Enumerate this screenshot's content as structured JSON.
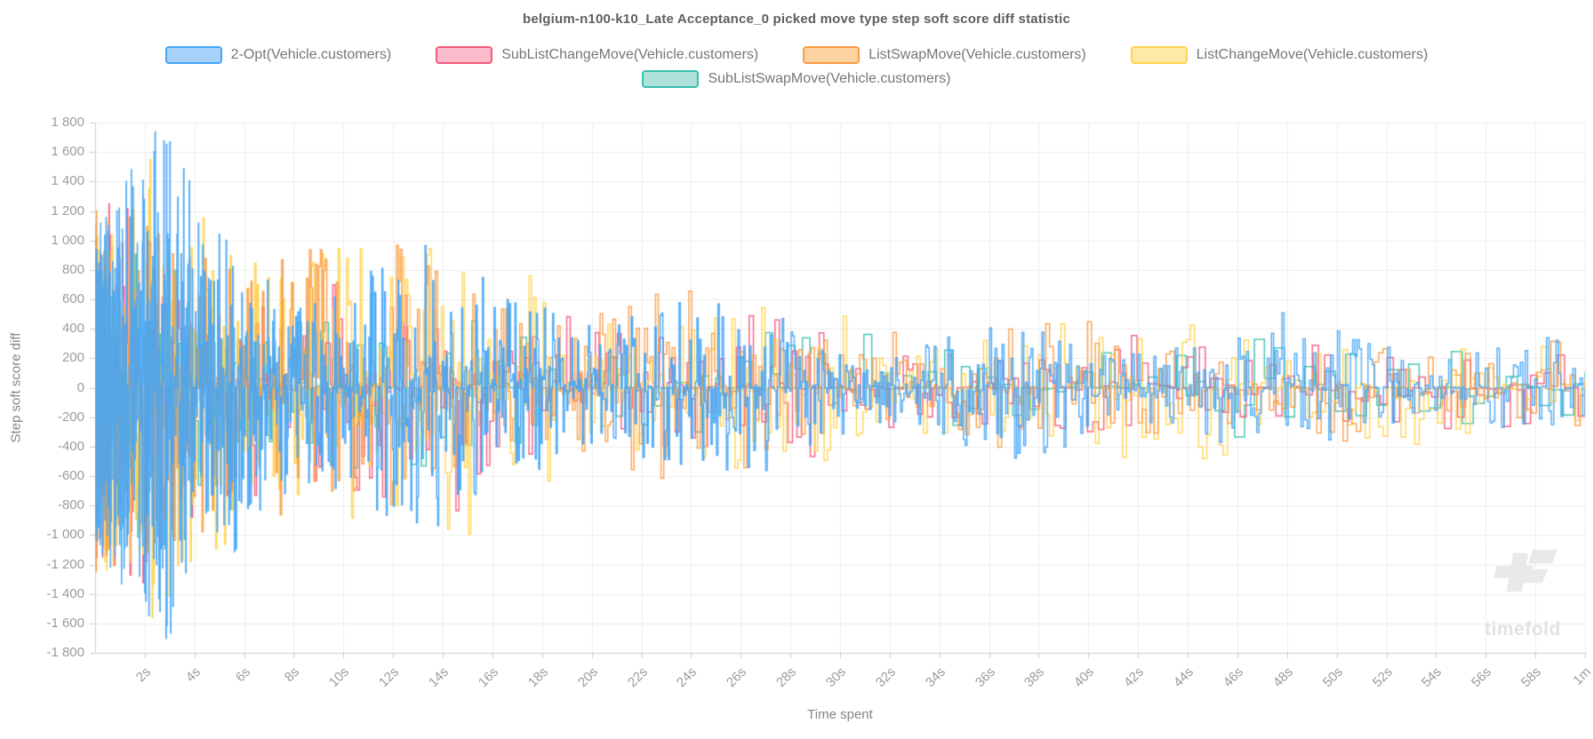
{
  "watermark": {
    "text": "timefold"
  },
  "chart_data": {
    "type": "line",
    "variant": "step-noise",
    "title": "belgium-n100-k10_Late Acceptance_0 picked move type step soft score diff statistic",
    "xlabel": "Time spent",
    "ylabel": "Step soft score diff",
    "x_unit": "seconds",
    "xlim": [
      0,
      60
    ],
    "ylim": [
      -1800,
      1800
    ],
    "grid": true,
    "legend_position": "top",
    "colors": {
      "grid": "#ececec",
      "axis": "#cccccc",
      "tick_text": "#9b9b9b",
      "title_text": "#5f5f5f"
    },
    "y_ticks": [
      {
        "v": 1800,
        "label": "1 800"
      },
      {
        "v": 1600,
        "label": "1 600"
      },
      {
        "v": 1400,
        "label": "1 400"
      },
      {
        "v": 1200,
        "label": "1 200"
      },
      {
        "v": 1000,
        "label": "1 000"
      },
      {
        "v": 800,
        "label": "800"
      },
      {
        "v": 600,
        "label": "600"
      },
      {
        "v": 400,
        "label": "400"
      },
      {
        "v": 200,
        "label": "200"
      },
      {
        "v": 0,
        "label": "0"
      },
      {
        "v": -200,
        "label": "-200"
      },
      {
        "v": -400,
        "label": "-400"
      },
      {
        "v": -600,
        "label": "-600"
      },
      {
        "v": -800,
        "label": "-800"
      },
      {
        "v": -1000,
        "label": "-1 000"
      },
      {
        "v": -1200,
        "label": "-1 200"
      },
      {
        "v": -1400,
        "label": "-1 400"
      },
      {
        "v": -1600,
        "label": "-1 600"
      },
      {
        "v": -1800,
        "label": "-1 800"
      }
    ],
    "x_ticks": [
      {
        "v": 2,
        "label": "2s"
      },
      {
        "v": 4,
        "label": "4s"
      },
      {
        "v": 6,
        "label": "6s"
      },
      {
        "v": 8,
        "label": "8s"
      },
      {
        "v": 10,
        "label": "10s"
      },
      {
        "v": 12,
        "label": "12s"
      },
      {
        "v": 14,
        "label": "14s"
      },
      {
        "v": 16,
        "label": "16s"
      },
      {
        "v": 18,
        "label": "18s"
      },
      {
        "v": 20,
        "label": "20s"
      },
      {
        "v": 22,
        "label": "22s"
      },
      {
        "v": 24,
        "label": "24s"
      },
      {
        "v": 26,
        "label": "26s"
      },
      {
        "v": 28,
        "label": "28s"
      },
      {
        "v": 30,
        "label": "30s"
      },
      {
        "v": 32,
        "label": "32s"
      },
      {
        "v": 34,
        "label": "34s"
      },
      {
        "v": 36,
        "label": "36s"
      },
      {
        "v": 38,
        "label": "38s"
      },
      {
        "v": 40,
        "label": "40s"
      },
      {
        "v": 42,
        "label": "42s"
      },
      {
        "v": 44,
        "label": "44s"
      },
      {
        "v": 46,
        "label": "46s"
      },
      {
        "v": 48,
        "label": "48s"
      },
      {
        "v": 50,
        "label": "50s"
      },
      {
        "v": 52,
        "label": "52s"
      },
      {
        "v": 54,
        "label": "54s"
      },
      {
        "v": 56,
        "label": "56s"
      },
      {
        "v": 58,
        "label": "58s"
      },
      {
        "v": 60,
        "label": "1m"
      }
    ],
    "z_order": [
      4,
      1,
      3,
      2,
      0
    ],
    "series": [
      {
        "name": "2-Opt(Vehicle.customers)",
        "color": "#45a5f5",
        "fill": "#a9d2fa",
        "seed": 7,
        "points": 1600,
        "gamma": 2.6,
        "mag_pow": 1.8,
        "burst": [
          0.55,
          0.0,
          0.78,
          0.22
        ],
        "envelope": [
          [
            0,
            1350
          ],
          [
            1.5,
            1600
          ],
          [
            2.7,
            1800
          ],
          [
            4,
            1500
          ],
          [
            6,
            1400
          ],
          [
            8,
            1250
          ],
          [
            10,
            1150
          ],
          [
            13,
            1050
          ],
          [
            16,
            900
          ],
          [
            19,
            800
          ],
          [
            22,
            750
          ],
          [
            25,
            650
          ],
          [
            28,
            600
          ],
          [
            32,
            520
          ],
          [
            36,
            500
          ],
          [
            40,
            460
          ],
          [
            44,
            500
          ],
          [
            47,
            560
          ],
          [
            50,
            420
          ],
          [
            54,
            400
          ],
          [
            60,
            380
          ]
        ]
      },
      {
        "name": "SubListChangeMove(Vehicle.customers)",
        "color": "#f4597b",
        "fill": "#fabcca",
        "seed": 11,
        "points": 520,
        "gamma": 2.4,
        "mag_pow": 2.3,
        "burst": [
          0.45,
          1.3,
          0.8,
          0.2
        ],
        "envelope": [
          [
            0,
            1200
          ],
          [
            3,
            1500
          ],
          [
            5,
            1300
          ],
          [
            8,
            1250
          ],
          [
            11,
            1000
          ],
          [
            14,
            900
          ],
          [
            17,
            850
          ],
          [
            20,
            700
          ],
          [
            24,
            600
          ],
          [
            28,
            500
          ],
          [
            32,
            420
          ],
          [
            36,
            430
          ],
          [
            40,
            380
          ],
          [
            44,
            360
          ],
          [
            48,
            400
          ],
          [
            51,
            630
          ],
          [
            52,
            380
          ],
          [
            56,
            330
          ],
          [
            60,
            330
          ]
        ]
      },
      {
        "name": "ListSwapMove(Vehicle.customers)",
        "color": "#fa9c45",
        "fill": "#fcd3a1",
        "seed": 23,
        "points": 760,
        "gamma": 2.5,
        "mag_pow": 2.3,
        "burst": [
          0.5,
          2.1,
          0.8,
          0.2
        ],
        "envelope": [
          [
            0,
            1300
          ],
          [
            2,
            1450
          ],
          [
            5.6,
            1650
          ],
          [
            7,
            1300
          ],
          [
            9,
            1150
          ],
          [
            12,
            1000
          ],
          [
            15,
            950
          ],
          [
            18,
            850
          ],
          [
            21,
            750
          ],
          [
            24,
            680
          ],
          [
            27,
            640
          ],
          [
            30,
            560
          ],
          [
            34,
            580
          ],
          [
            38,
            520
          ],
          [
            42,
            700
          ],
          [
            44,
            480
          ],
          [
            48,
            440
          ],
          [
            52,
            420
          ],
          [
            56,
            400
          ],
          [
            60,
            420
          ]
        ]
      },
      {
        "name": "ListChangeMove(Vehicle.customers)",
        "color": "#ffd34f",
        "fill": "#ffe9a6",
        "seed": 31,
        "points": 760,
        "gamma": 2.5,
        "mag_pow": 2.3,
        "burst": [
          0.48,
          0.7,
          0.8,
          0.2
        ],
        "envelope": [
          [
            0,
            1250
          ],
          [
            2.3,
            1650
          ],
          [
            4,
            1400
          ],
          [
            7,
            1300
          ],
          [
            9.5,
            1550
          ],
          [
            12,
            1100
          ],
          [
            15,
            1000
          ],
          [
            18,
            900
          ],
          [
            21,
            800
          ],
          [
            24,
            700
          ],
          [
            27,
            620
          ],
          [
            30,
            560
          ],
          [
            34,
            520
          ],
          [
            38,
            500
          ],
          [
            42,
            480
          ],
          [
            45.5,
            720
          ],
          [
            47,
            450
          ],
          [
            51,
            420
          ],
          [
            55,
            400
          ],
          [
            60,
            430
          ]
        ]
      },
      {
        "name": "SubListSwapMove(Vehicle.customers)",
        "color": "#39bfae",
        "fill": "#ace0d8",
        "seed": 43,
        "points": 300,
        "gamma": 2.3,
        "mag_pow": 2.8,
        "burst": [
          0.4,
          2.8,
          0.8,
          0.2
        ],
        "envelope": [
          [
            0,
            900
          ],
          [
            2.7,
            1800
          ],
          [
            3.5,
            1000
          ],
          [
            5,
            1560
          ],
          [
            7,
            900
          ],
          [
            10,
            700
          ],
          [
            13,
            600
          ],
          [
            16,
            550
          ],
          [
            20,
            480
          ],
          [
            25,
            430
          ],
          [
            30,
            400
          ],
          [
            35,
            420
          ],
          [
            40,
            380
          ],
          [
            45,
            400
          ],
          [
            50,
            380
          ],
          [
            55,
            350
          ],
          [
            60,
            360
          ]
        ]
      }
    ]
  }
}
